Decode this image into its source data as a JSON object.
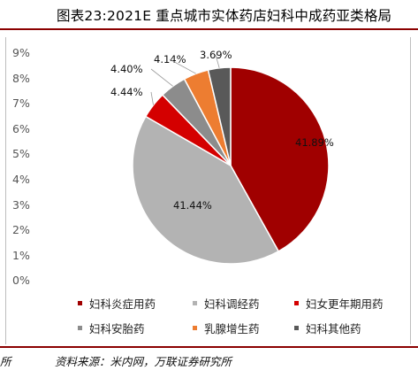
{
  "title": "图表23:2021E 重点城市实体药店妇科中成药亚类格局",
  "y_ticks": [
    "9%",
    "8%",
    "7%",
    "6%",
    "5%",
    "4%",
    "3%",
    "2%",
    "1%",
    "0%"
  ],
  "source": "资料来源：米内网，万联证券研究所",
  "edge_text": "所",
  "chart_data": {
    "type": "pie",
    "title": "图表23:2021E 重点城市实体药店妇科中成药亚类格局",
    "legend_position": "bottom",
    "slices": [
      {
        "name": "妇科炎症用药",
        "value": 41.89,
        "label": "41.89%",
        "color": "#a00000"
      },
      {
        "name": "妇科调经药",
        "value": 41.44,
        "label": "41.44%",
        "color": "#b3b3b3"
      },
      {
        "name": "妇女更年期用药",
        "value": 4.44,
        "label": "4.44%",
        "color": "#d40000"
      },
      {
        "name": "妇科安胎药",
        "value": 4.4,
        "label": "4.40%",
        "color": "#8c8c8c"
      },
      {
        "name": "乳腺增生药",
        "value": 4.14,
        "label": "4.14%",
        "color": "#ed7d31"
      },
      {
        "name": "妇科其他药",
        "value": 3.69,
        "label": "3.69%",
        "color": "#595959"
      }
    ]
  }
}
